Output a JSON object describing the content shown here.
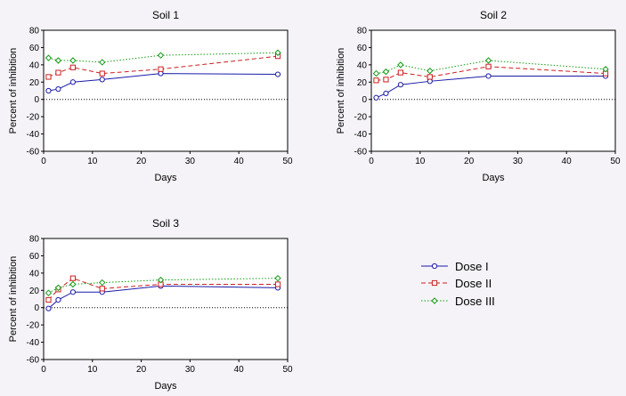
{
  "chart_data": [
    {
      "type": "line",
      "title": "Soil 1",
      "xlabel": "Days",
      "ylabel": "Percent of inhibition",
      "xlim": [
        0,
        50
      ],
      "ylim": [
        -60,
        80
      ],
      "xticks": [
        "0",
        "10",
        "20",
        "30",
        "40",
        "50"
      ],
      "yticks": [
        "80",
        "60",
        "40",
        "20",
        "0",
        "-20",
        "-40",
        "-60"
      ],
      "x": [
        1,
        3,
        6,
        12,
        24,
        48
      ],
      "series": [
        {
          "name": "Dose I",
          "values": [
            10,
            12,
            20,
            23,
            30,
            29
          ]
        },
        {
          "name": "Dose II",
          "values": [
            26,
            31,
            37,
            30,
            35,
            50
          ]
        },
        {
          "name": "Dose III",
          "values": [
            48,
            45,
            45,
            43,
            51,
            54
          ]
        }
      ]
    },
    {
      "type": "line",
      "title": "Soil 2",
      "xlabel": "Days",
      "ylabel": "Percent of inhibition",
      "xlim": [
        0,
        50
      ],
      "ylim": [
        -60,
        80
      ],
      "xticks": [
        "0",
        "10",
        "20",
        "30",
        "40",
        "50"
      ],
      "yticks": [
        "80",
        "60",
        "40",
        "20",
        "0",
        "-20",
        "-40",
        "-60"
      ],
      "x": [
        1,
        3,
        6,
        12,
        24,
        48
      ],
      "series": [
        {
          "name": "Dose I",
          "values": [
            2,
            7,
            17,
            21,
            27,
            27
          ]
        },
        {
          "name": "Dose II",
          "values": [
            22,
            23,
            31,
            26,
            38,
            30
          ]
        },
        {
          "name": "Dose III",
          "values": [
            30,
            32,
            40,
            33,
            45,
            35
          ]
        }
      ]
    },
    {
      "type": "line",
      "title": "Soil 3",
      "xlabel": "Days",
      "ylabel": "Percent of inhibition",
      "xlim": [
        0,
        50
      ],
      "ylim": [
        -60,
        80
      ],
      "xticks": [
        "0",
        "10",
        "20",
        "30",
        "40",
        "50"
      ],
      "yticks": [
        "80",
        "60",
        "40",
        "20",
        "0",
        "-20",
        "-40",
        "-60"
      ],
      "x": [
        1,
        3,
        6,
        12,
        24,
        48
      ],
      "series": [
        {
          "name": "Dose I",
          "values": [
            -1,
            9,
            18,
            18,
            25,
            23
          ]
        },
        {
          "name": "Dose II",
          "values": [
            9,
            21,
            34,
            22,
            27,
            27
          ]
        },
        {
          "name": "Dose III",
          "values": [
            17,
            23,
            27,
            29,
            32,
            34
          ]
        }
      ]
    }
  ],
  "legend": {
    "entries": [
      "Dose I",
      "Dose II",
      "Dose III"
    ],
    "placement": "bottom-right"
  },
  "styles": {
    "Dose I": {
      "color": "#1a1aa8",
      "dash": "solid",
      "marker": "circle"
    },
    "Dose II": {
      "color": "#cc1f1f",
      "dash": "dashed",
      "marker": "square"
    },
    "Dose III": {
      "color": "#119a11",
      "dash": "dotted",
      "marker": "diamond"
    },
    "zero_line_color": "#000000",
    "background": "#f5f3f8"
  }
}
